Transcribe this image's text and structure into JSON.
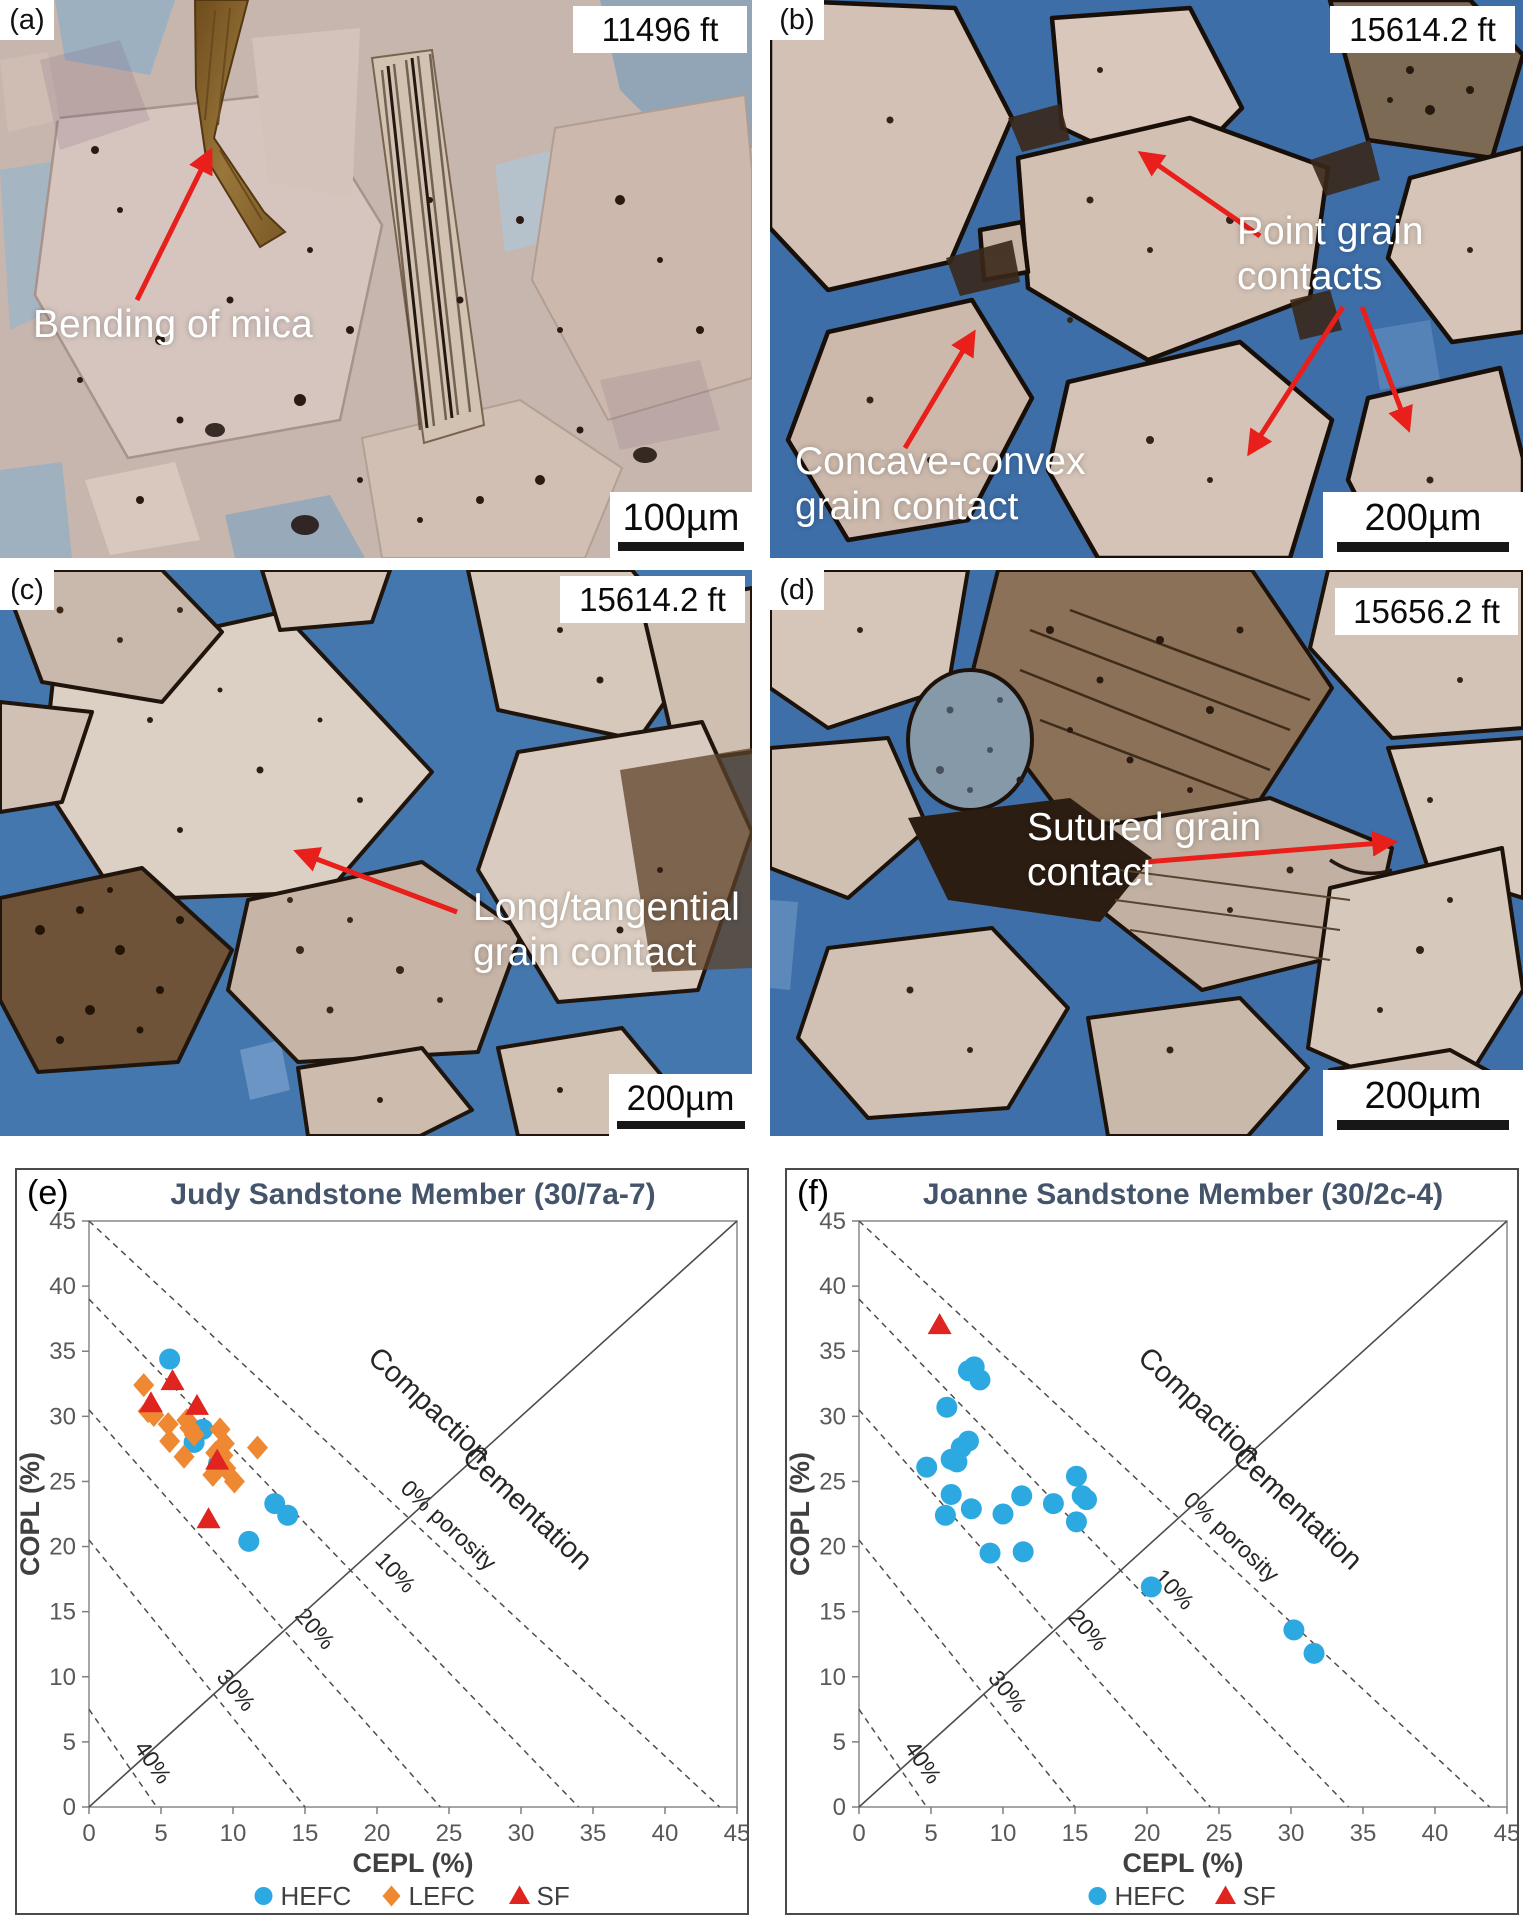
{
  "colors": {
    "arrow": "#e81f1a",
    "epoxy_blue": "#3e6ea8",
    "hefc_blue": "#2da9e1",
    "lefc_orange": "#ee8833",
    "sf_red": "#e02420",
    "title": "#44546a",
    "tick_gray": "#595959"
  },
  "panel_a": {
    "tag": "(a)",
    "depth": "11496 ft",
    "scale_label": "100µm",
    "ann_mica": "Bending of mica"
  },
  "panel_b": {
    "tag": "(b)",
    "depth": "15614.2 ft",
    "scale_label": "200µm",
    "ann_point_1": "Point grain",
    "ann_point_2": "contacts",
    "ann_concave_1": "Concave-convex",
    "ann_concave_2": "grain contact"
  },
  "panel_c": {
    "tag": "(c)",
    "depth": "15614.2 ft",
    "scale_label": "200µm",
    "ann_long_1": "Long/tangential",
    "ann_long_2": "grain contact"
  },
  "panel_d": {
    "tag": "(d)",
    "depth": "15656.2 ft",
    "scale_label": "200µm",
    "ann_sutured_1": "Sutured grain",
    "ann_sutured_2": "contact"
  },
  "chart_data": [
    {
      "type": "scatter",
      "tag": "(e)",
      "title": "Judy Sandstone Member (30/7a-7)",
      "xlabel": "CEPL (%)",
      "ylabel": "COPL (%)",
      "xlim": [
        0,
        45
      ],
      "ylim": [
        0,
        45
      ],
      "tick_step": 5,
      "grid": false,
      "legend_position": "bottom",
      "region_labels": [
        {
          "text": "Compaction",
          "pos": [
            23.2,
            30.3
          ]
        },
        {
          "text": "Cementation",
          "pos": [
            30.0,
            22.4
          ]
        }
      ],
      "diagonal": {
        "from": [
          0,
          0
        ],
        "to": [
          45,
          45
        ]
      },
      "porosity_lines": [
        {
          "label": "0% porosity",
          "from": [
            0,
            45
          ],
          "to": [
            43.8,
            0
          ],
          "label_pos": [
            24.6,
            21.2
          ]
        },
        {
          "label": "10%",
          "from": [
            0,
            39
          ],
          "to": [
            34,
            0
          ],
          "label_pos": [
            20.9,
            17.6
          ]
        },
        {
          "label": "20%",
          "from": [
            0,
            30.5
          ],
          "to": [
            24.4,
            0
          ],
          "label_pos": [
            15.3,
            13.3
          ]
        },
        {
          "label": "30%",
          "from": [
            0,
            20.5
          ],
          "to": [
            15,
            0
          ],
          "label_pos": [
            9.8,
            8.6
          ]
        },
        {
          "label": "40%",
          "from": [
            0,
            7.5
          ],
          "to": [
            4.7,
            0
          ],
          "label_pos": [
            4.0,
            3.1
          ]
        }
      ],
      "series": [
        {
          "name": "HEFC",
          "marker": "circle",
          "color": "#2da9e1",
          "points": [
            [
              5.6,
              34.4
            ],
            [
              7.9,
              29.0
            ],
            [
              7.3,
              28.0
            ],
            [
              9.0,
              26.4
            ],
            [
              12.9,
              23.3
            ],
            [
              13.8,
              22.4
            ],
            [
              11.1,
              20.4
            ]
          ]
        },
        {
          "name": "LEFC",
          "marker": "diamond",
          "color": "#ee8833",
          "points": [
            [
              3.8,
              32.4
            ],
            [
              4.1,
              30.4
            ],
            [
              4.5,
              30.1
            ],
            [
              5.5,
              29.4
            ],
            [
              5.6,
              28.1
            ],
            [
              6.6,
              26.9
            ],
            [
              6.8,
              29.7
            ],
            [
              7.0,
              29.1
            ],
            [
              7.3,
              28.6
            ],
            [
              9.1,
              29.0
            ],
            [
              9.4,
              27.9
            ],
            [
              8.8,
              27.2
            ],
            [
              9.3,
              27.0
            ],
            [
              8.6,
              25.5
            ],
            [
              9.5,
              26.0
            ],
            [
              10.1,
              25.0
            ],
            [
              11.7,
              27.6
            ]
          ]
        },
        {
          "name": "SF",
          "marker": "triangle",
          "color": "#e02420",
          "points": [
            [
              5.8,
              32.7
            ],
            [
              4.3,
              31.0
            ],
            [
              7.5,
              30.8
            ],
            [
              8.9,
              26.6
            ],
            [
              8.3,
              22.1
            ]
          ]
        }
      ]
    },
    {
      "type": "scatter",
      "tag": "(f)",
      "title": "Joanne Sandstone Member (30/2c-4)",
      "xlabel": "CEPL (%)",
      "ylabel": "COPL (%)",
      "xlim": [
        0,
        45
      ],
      "ylim": [
        0,
        45
      ],
      "tick_step": 5,
      "grid": false,
      "legend_position": "bottom",
      "region_labels": [
        {
          "text": "Compaction",
          "pos": [
            23.2,
            30.3
          ]
        },
        {
          "text": "Cementation",
          "pos": [
            30.0,
            22.4
          ]
        }
      ],
      "diagonal": {
        "from": [
          0,
          0
        ],
        "to": [
          45,
          45
        ]
      },
      "porosity_lines": [
        {
          "label": "0% porosity",
          "from": [
            0,
            45
          ],
          "to": [
            43.8,
            0
          ],
          "label_pos": [
            25.5,
            20.3
          ]
        },
        {
          "label": "10%",
          "from": [
            0,
            39
          ],
          "to": [
            34,
            0
          ],
          "label_pos": [
            21.5,
            16.3
          ]
        },
        {
          "label": "20%",
          "from": [
            0,
            30.5
          ],
          "to": [
            24.4,
            0
          ],
          "label_pos": [
            15.5,
            13.2
          ]
        },
        {
          "label": "30%",
          "from": [
            0,
            20.5
          ],
          "to": [
            15,
            0
          ],
          "label_pos": [
            9.9,
            8.5
          ]
        },
        {
          "label": "40%",
          "from": [
            0,
            7.5
          ],
          "to": [
            4.7,
            0
          ],
          "label_pos": [
            4.0,
            3.1
          ]
        }
      ],
      "series": [
        {
          "name": "HEFC",
          "marker": "circle",
          "color": "#2da9e1",
          "points": [
            [
              7.6,
              33.5
            ],
            [
              8.0,
              33.8
            ],
            [
              8.4,
              32.8
            ],
            [
              6.1,
              30.7
            ],
            [
              7.1,
              27.6
            ],
            [
              7.6,
              28.1
            ],
            [
              6.4,
              26.7
            ],
            [
              6.8,
              26.5
            ],
            [
              4.7,
              26.1
            ],
            [
              6.4,
              24.0
            ],
            [
              6.0,
              22.4
            ],
            [
              7.8,
              22.9
            ],
            [
              10.0,
              22.5
            ],
            [
              11.3,
              23.9
            ],
            [
              13.5,
              23.3
            ],
            [
              15.1,
              25.4
            ],
            [
              15.5,
              23.9
            ],
            [
              15.8,
              23.6
            ],
            [
              15.1,
              21.9
            ],
            [
              9.1,
              19.5
            ],
            [
              11.4,
              19.6
            ],
            [
              20.3,
              16.9
            ],
            [
              30.2,
              13.6
            ],
            [
              31.6,
              11.8
            ]
          ]
        },
        {
          "name": "SF",
          "marker": "triangle",
          "color": "#e02420",
          "points": [
            [
              5.6,
              37.0
            ]
          ]
        }
      ]
    }
  ]
}
